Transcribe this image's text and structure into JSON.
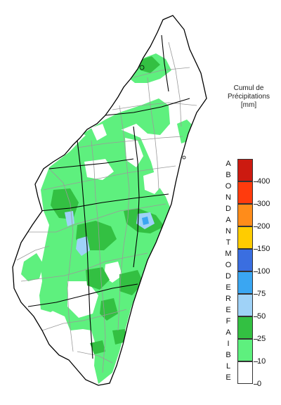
{
  "legend": {
    "title_lines": [
      "Cumul de",
      "Précipitations",
      "[mm]"
    ],
    "categories": [
      {
        "name": "abondant",
        "letters": [
          "A",
          "B",
          "O",
          "N",
          "D",
          "A",
          "N",
          "T"
        ]
      },
      {
        "name": "modere",
        "letters": [
          "M",
          "O",
          "D",
          "E",
          "R",
          "E"
        ]
      },
      {
        "name": "faible",
        "letters": [
          "F",
          "A",
          "I",
          "B",
          "L",
          "E"
        ]
      }
    ],
    "bins": [
      {
        "color": "#ffffff"
      },
      {
        "color": "#5ef07e"
      },
      {
        "color": "#33c042"
      },
      {
        "color": "#9fd2f7"
      },
      {
        "color": "#3aa6f2"
      },
      {
        "color": "#3a6ee0"
      },
      {
        "color": "#ffcc00"
      },
      {
        "color": "#ff8c1a"
      },
      {
        "color": "#ff3b0d"
      },
      {
        "color": "#cc1a10"
      }
    ],
    "tick_labels": [
      "0",
      "10",
      "25",
      "50",
      "75",
      "100",
      "150",
      "200",
      "300",
      "400"
    ]
  },
  "map": {
    "land_color": "#ffffff",
    "outline_color": "#000000",
    "district_color": "#9a9a9a",
    "light_rain_color": "#5ef07e",
    "moderate_rain_color": "#33c042",
    "lake_color": "#9fd2f7",
    "deep_blue_color": "#3aa6f2"
  }
}
